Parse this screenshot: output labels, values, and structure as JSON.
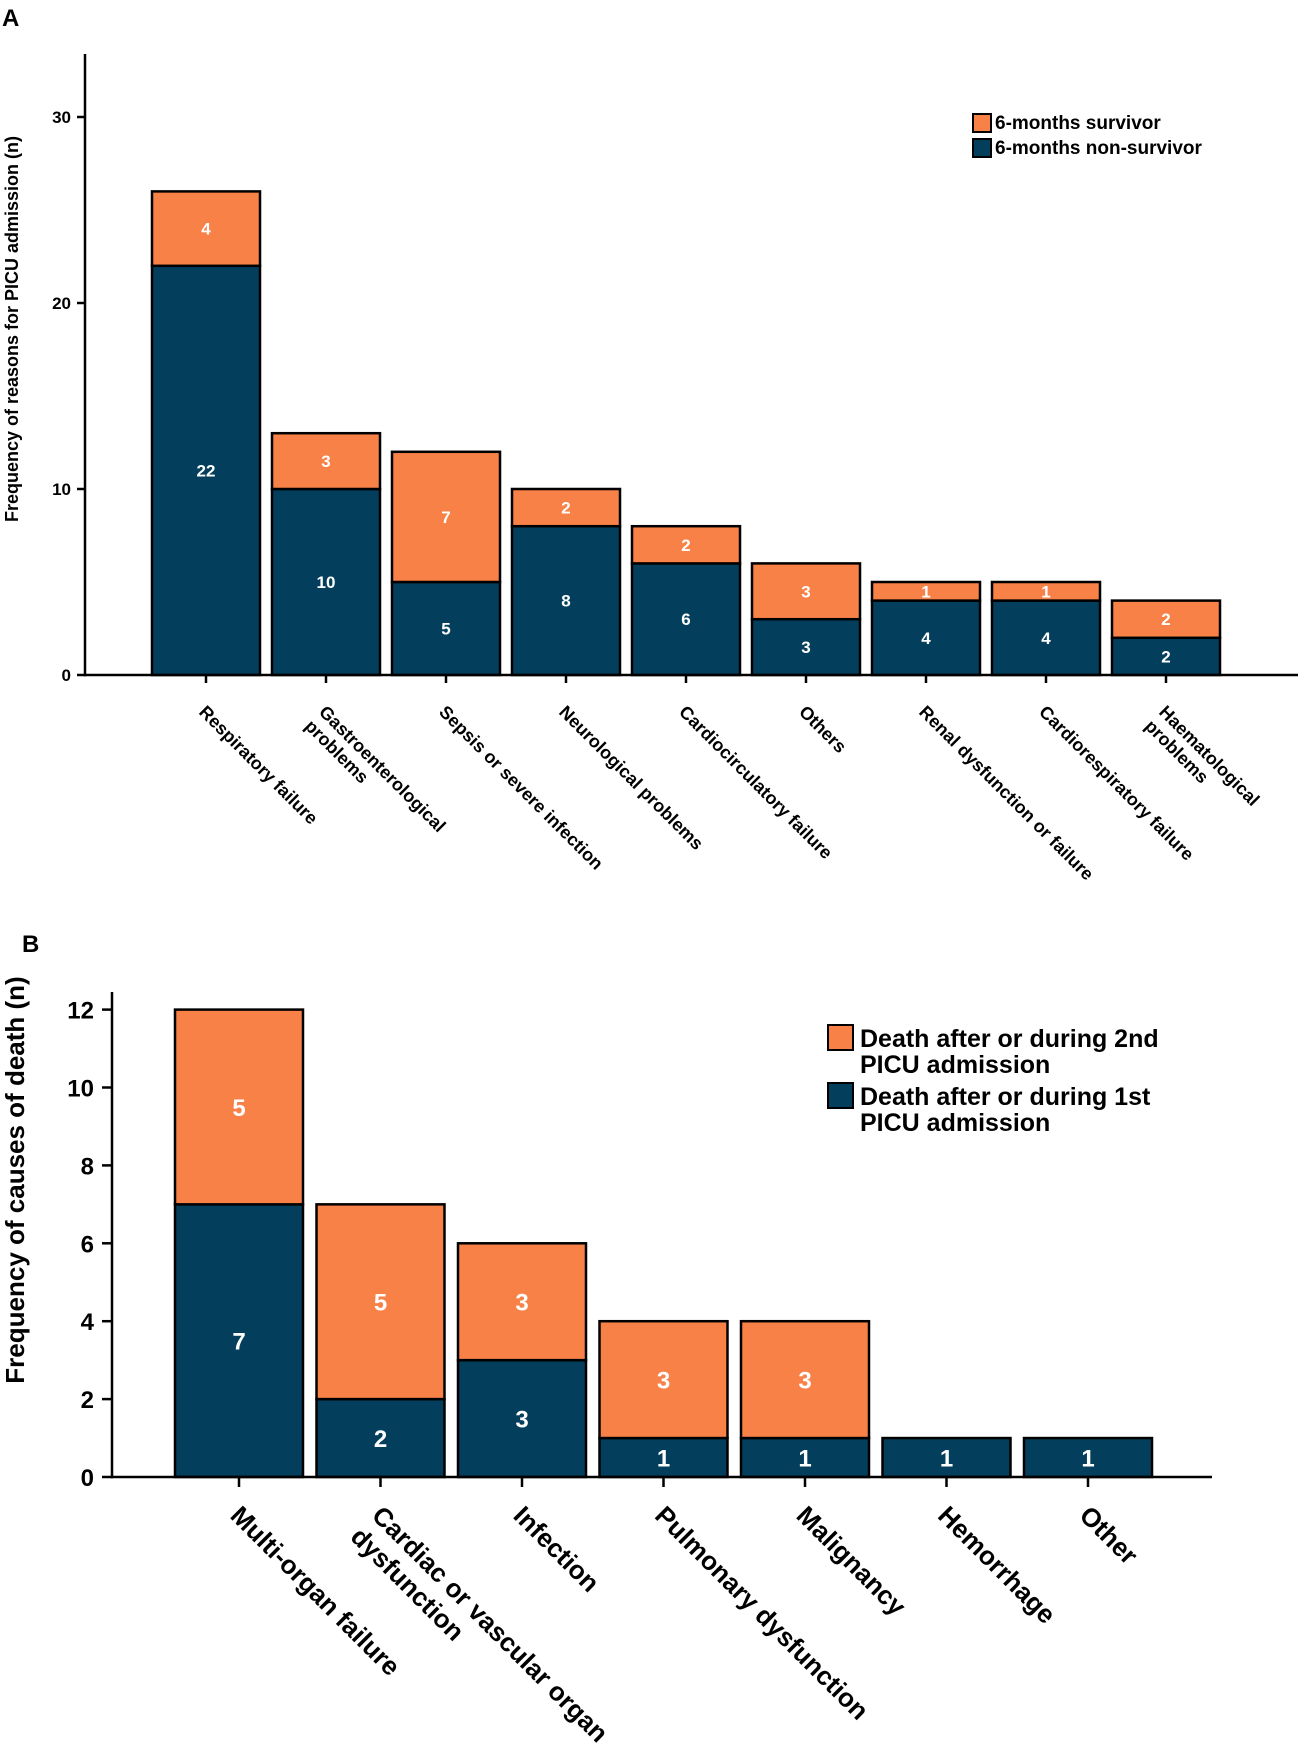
{
  "colors": {
    "survivor": "#F88147",
    "non_survivor": "#033F5C",
    "axis": "#000000"
  },
  "chart_data": [
    {
      "panel": "A",
      "type": "bar",
      "stacked": true,
      "categories": [
        "Respiratory failure",
        "Gastroenterological problems",
        "Sepsis or severe infection",
        "Neurological problems",
        "Cardiocirculatory failure",
        "Others",
        "Renal dysfunction or failure",
        "Cardiorespiratory failure",
        "Haematological problems"
      ],
      "category_lines": [
        [
          "Respiratory failure"
        ],
        [
          "Gastroenterological",
          "problems"
        ],
        [
          "Sepsis or severe infection"
        ],
        [
          "Neurological problems"
        ],
        [
          "Cardiocirculatory failure"
        ],
        [
          "Others"
        ],
        [
          "Renal dysfunction or failure"
        ],
        [
          "Cardiorespiratory failure"
        ],
        [
          "Haematological",
          "problems"
        ]
      ],
      "series": [
        {
          "name": "6-months non-survivor",
          "values": [
            22,
            10,
            5,
            8,
            6,
            3,
            4,
            4,
            2
          ]
        },
        {
          "name": "6-months survivor",
          "values": [
            4,
            3,
            7,
            2,
            2,
            3,
            1,
            1,
            2
          ]
        }
      ],
      "legend_order": [
        "6-months survivor",
        "6-months non-survivor"
      ],
      "ylabel": "Frequency of reasons for PICU admission (n)",
      "xlabel": "",
      "ylim": [
        0,
        33
      ],
      "yticks": [
        0,
        10,
        20,
        30
      ],
      "legend_position": "top-right"
    },
    {
      "panel": "B",
      "type": "bar",
      "stacked": true,
      "categories": [
        "Multi-organ failure",
        "Cardiac or vascular organ dysfunction",
        "Infection",
        "Pulmonary dysfunction",
        "Malignancy",
        "Hemorrhage",
        "Other"
      ],
      "category_lines": [
        [
          "Multi-organ failure"
        ],
        [
          "Cardiac or vascular organ",
          "dysfunction"
        ],
        [
          "Infection"
        ],
        [
          "Pulmonary dysfunction"
        ],
        [
          "Malignancy"
        ],
        [
          "Hemorrhage"
        ],
        [
          "Other"
        ]
      ],
      "series": [
        {
          "name": "Death after or during 1st PICU admission",
          "values": [
            7,
            2,
            3,
            1,
            1,
            1,
            1
          ]
        },
        {
          "name": "Death after or during 2nd PICU admission",
          "values": [
            5,
            5,
            3,
            3,
            3,
            0,
            0
          ]
        }
      ],
      "legend_order": [
        "Death after or during 2nd PICU admission",
        "Death after or during 1st PICU admission"
      ],
      "legend_lines": [
        [
          "Death after or during 2nd",
          "PICU admission"
        ],
        [
          "Death after or during 1st",
          "PICU admission"
        ]
      ],
      "ylabel": "Frequency of causes of death (n)",
      "xlabel": "",
      "ylim": [
        0,
        12.5
      ],
      "yticks": [
        0,
        2,
        4,
        6,
        8,
        10,
        12
      ],
      "legend_position": "top-right"
    }
  ]
}
